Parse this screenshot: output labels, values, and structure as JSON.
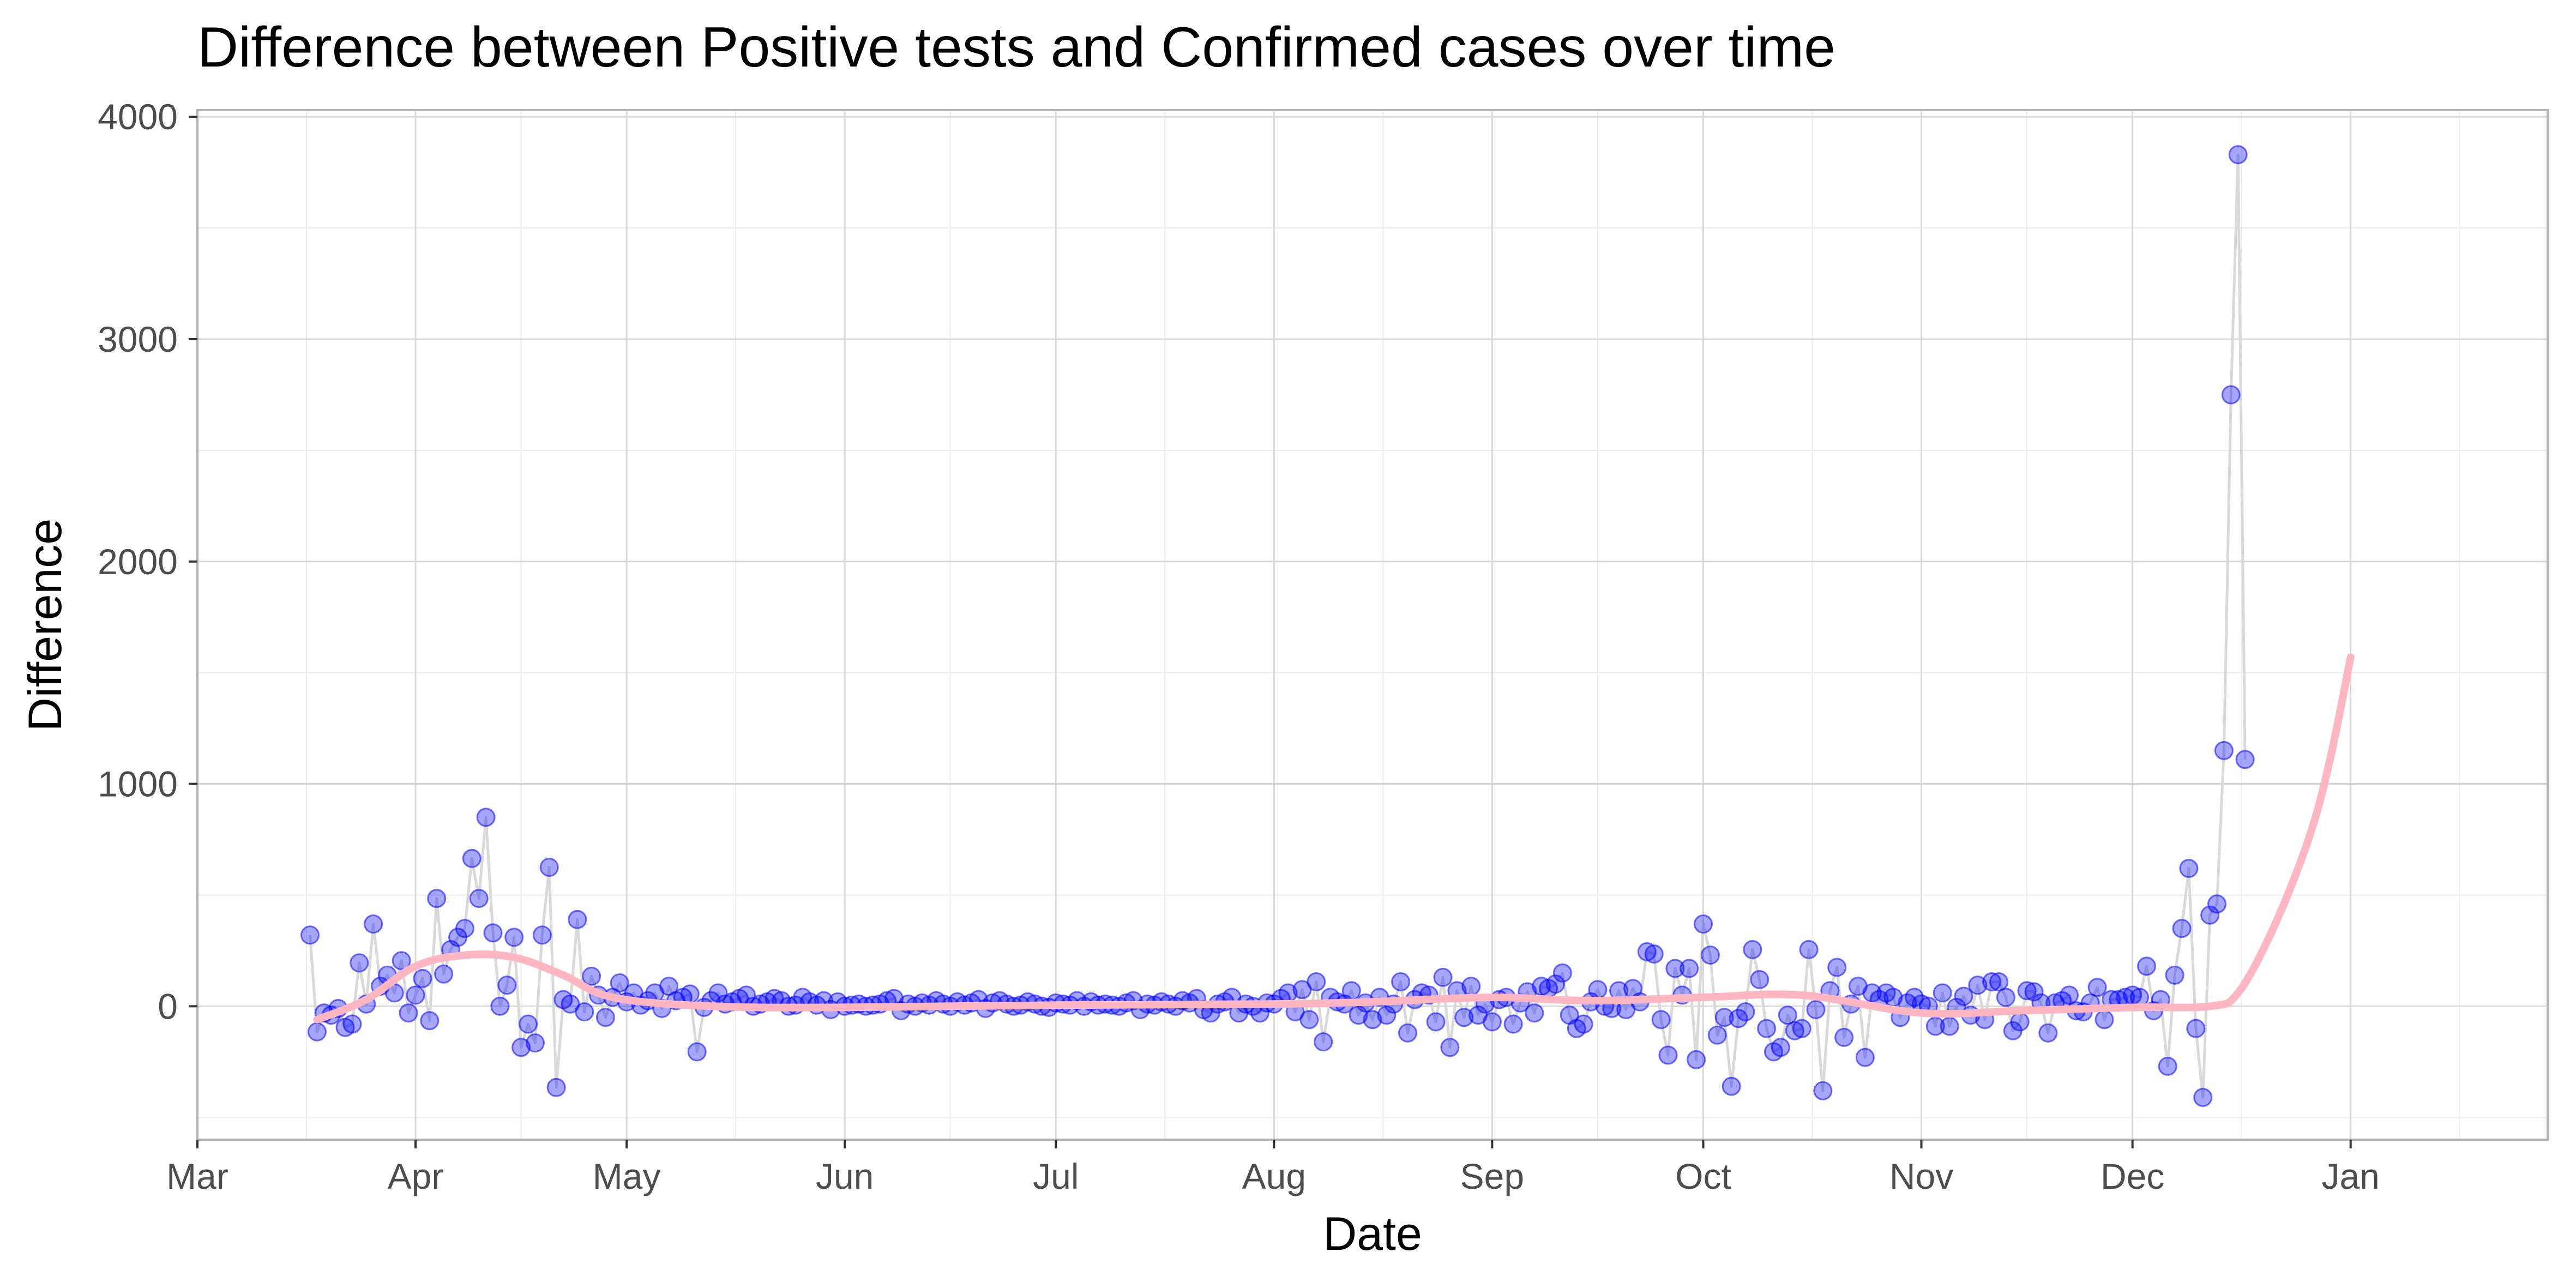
{
  "chart_data": {
    "type": "scatter",
    "title": "Difference between Positive tests and Confirmed cases over time",
    "xlabel": "Date",
    "ylabel": "Difference",
    "x_ticks": [
      "Mar",
      "Apr",
      "May",
      "Jun",
      "Jul",
      "Aug",
      "Sep",
      "Oct",
      "Nov",
      "Dec",
      "Jan"
    ],
    "y_ticks": [
      "0",
      "1000",
      "2000",
      "3000",
      "4000"
    ],
    "xlim": [
      "2020-03-01",
      "2021-01-29"
    ],
    "ylim": [
      -600,
      4030
    ],
    "grid": true,
    "legend": "none",
    "colors": {
      "points": "#0000ff",
      "connecting_line": "#d9d9d9",
      "trend": "#ffb6c1",
      "grid_major": "#d9d9d9",
      "grid_minor": "#ececec",
      "panel_border": "#b3b3b3"
    },
    "series": [
      {
        "start_date": "2020-03-17",
        "values": [
          320,
          -115,
          -30,
          -40,
          -10,
          -95,
          -80,
          195,
          10,
          370,
          90,
          140,
          60,
          205,
          -30,
          50,
          125,
          -65,
          485,
          145,
          255,
          310,
          350,
          665,
          485,
          850,
          330,
          0,
          95,
          310,
          -185,
          -80,
          -165,
          320,
          625,
          -365,
          30,
          10,
          390,
          -25,
          135,
          50,
          -50,
          40,
          105,
          20,
          60,
          5,
          25,
          60,
          -10,
          90,
          25,
          40,
          55,
          -205,
          -5,
          25,
          60,
          10,
          20,
          35,
          50,
          0,
          10,
          20,
          35,
          25,
          0,
          5,
          40,
          20,
          5,
          25,
          -15,
          20,
          0,
          5,
          10,
          0,
          5,
          10,
          25,
          35,
          -20,
          10,
          0,
          15,
          5,
          25,
          10,
          0,
          20,
          5,
          15,
          30,
          -10,
          15,
          25,
          10,
          0,
          5,
          20,
          10,
          0,
          -5,
          15,
          10,
          5,
          25,
          0,
          20,
          5,
          10,
          5,
          0,
          15,
          25,
          -15,
          10,
          5,
          20,
          10,
          0,
          25,
          15,
          35,
          -15,
          -30,
          10,
          20,
          40,
          -30,
          10,
          0,
          -30,
          15,
          10,
          35,
          60,
          -25,
          75,
          -60,
          110,
          -160,
          40,
          20,
          10,
          70,
          -40,
          15,
          -60,
          40,
          -40,
          10,
          110,
          -120,
          30,
          60,
          50,
          -70,
          130,
          -185,
          70,
          -50,
          90,
          -40,
          10,
          -70,
          30,
          40,
          -80,
          15,
          65,
          -30,
          90,
          80,
          100,
          150,
          -40,
          -100,
          -80,
          20,
          75,
          0,
          -10,
          70,
          -15,
          80,
          20,
          245,
          235,
          -60,
          -220,
          170,
          50,
          170,
          -240,
          370,
          230,
          -130,
          -50,
          -360,
          -55,
          -25,
          255,
          120,
          -100,
          -205,
          -185,
          -40,
          -110,
          -100,
          255,
          -15,
          -380,
          70,
          175,
          -140,
          10,
          90,
          -230,
          60,
          30,
          60,
          40,
          -50,
          15,
          40,
          10,
          0,
          -90,
          60,
          -90,
          -5,
          45,
          -40,
          95,
          -60,
          110,
          110,
          40,
          -110,
          -70,
          70,
          65,
          15,
          -120,
          15,
          25,
          50,
          -20,
          -25,
          15,
          85,
          -60,
          30,
          30,
          40,
          50,
          40,
          180,
          -20,
          30,
          -270,
          140,
          350,
          620,
          -100,
          -410,
          410,
          460,
          1150,
          2750,
          3830,
          1110
        ]
      }
    ],
    "trend_line": {
      "method": "loess",
      "x": [
        "2020-03-18",
        "2020-03-25",
        "2020-04-01",
        "2020-04-08",
        "2020-04-15",
        "2020-04-22",
        "2020-04-29",
        "2020-05-13",
        "2020-06-01",
        "2020-07-01",
        "2020-08-01",
        "2020-08-15",
        "2020-09-01",
        "2020-09-15",
        "2020-10-01",
        "2020-10-15",
        "2020-11-01",
        "2020-11-15",
        "2020-12-01",
        "2020-12-12",
        "2020-12-16",
        "2020-12-21",
        "2020-12-26",
        "2020-12-29",
        "2021-01-01"
      ],
      "y": [
        -60,
        30,
        180,
        230,
        220,
        140,
        40,
        0,
        -5,
        5,
        10,
        20,
        40,
        25,
        40,
        50,
        -30,
        -20,
        -5,
        0,
        60,
        350,
        750,
        1100,
        1570
      ]
    }
  }
}
